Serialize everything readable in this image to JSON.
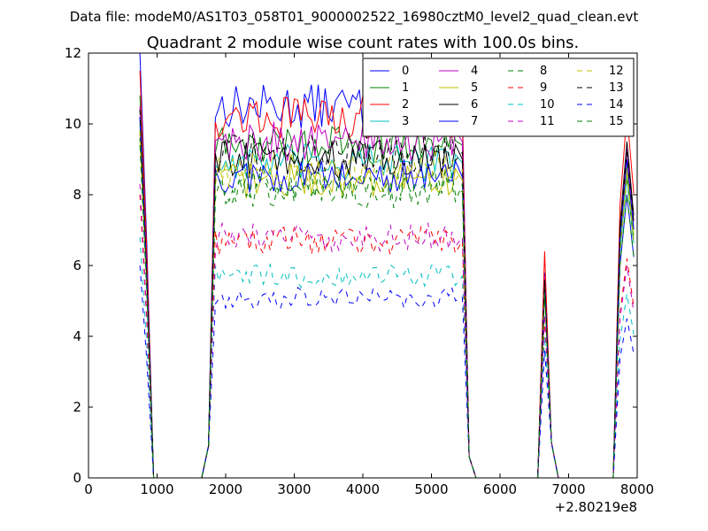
{
  "figure": {
    "suptitle": "Data file: modeM0/AS1T03_058T01_9000002522_16980cztM0_level2_quad_clean.evt"
  },
  "chart_data": {
    "type": "line",
    "title": "Quadrant 2 module wise count rates with 100.0s bins.",
    "xlabel": "",
    "ylabel": "",
    "x_offset_label": "+2.80219e8",
    "xlim": [
      0,
      8000
    ],
    "ylim": [
      0,
      12
    ],
    "xticks": [
      0,
      1000,
      2000,
      3000,
      4000,
      5000,
      6000,
      7000,
      8000
    ],
    "yticks": [
      0,
      2,
      4,
      6,
      8,
      10,
      12
    ],
    "grid": false,
    "legend_position": "top-right",
    "legend_columns": 4,
    "segments": [
      {
        "x0": 750,
        "x1": 1050,
        "profile": "spike_left"
      },
      {
        "x0": 1050,
        "x1": 1750,
        "profile": "zero"
      },
      {
        "x0": 1750,
        "x1": 5450,
        "profile": "plateau"
      },
      {
        "x0": 5450,
        "x1": 5650,
        "profile": "drop"
      },
      {
        "x0": 5650,
        "x1": 6550,
        "profile": "zero"
      },
      {
        "x0": 6550,
        "x1": 6850,
        "profile": "spike_mid"
      },
      {
        "x0": 6850,
        "x1": 7650,
        "profile": "zero"
      },
      {
        "x0": 7650,
        "x1": 8000,
        "profile": "spike_right"
      }
    ],
    "series": [
      {
        "name": "0",
        "color": "#0000ff",
        "dash": "solid",
        "level": 10.5,
        "start": 12.0,
        "spike_mid": 5.8,
        "spike_right": 8.0
      },
      {
        "name": "1",
        "color": "#008000",
        "dash": "solid",
        "level": 9.4,
        "start": 10.8,
        "spike_mid": 5.6,
        "spike_right": 9.0
      },
      {
        "name": "2",
        "color": "#ff0000",
        "dash": "solid",
        "level": 10.2,
        "start": 11.5,
        "spike_mid": 6.4,
        "spike_right": 10.3
      },
      {
        "name": "3",
        "color": "#00bfbf",
        "dash": "solid",
        "level": 8.9,
        "start": 10.0,
        "spike_mid": 5.5,
        "spike_right": 8.5
      },
      {
        "name": "4",
        "color": "#bf00bf",
        "dash": "solid",
        "level": 9.5,
        "start": 10.5,
        "spike_mid": 5.7,
        "spike_right": 9.3
      },
      {
        "name": "5",
        "color": "#bfbf00",
        "dash": "solid",
        "level": 8.4,
        "start": 9.8,
        "spike_mid": 5.3,
        "spike_right": 8.8
      },
      {
        "name": "6",
        "color": "#000000",
        "dash": "solid",
        "level": 9.0,
        "start": 10.2,
        "spike_mid": 5.6,
        "spike_right": 9.5
      },
      {
        "name": "7",
        "color": "#0000ff",
        "dash": "solid",
        "level": 8.5,
        "start": 10.2,
        "spike_mid": 5.4,
        "spike_right": 9.0
      },
      {
        "name": "8",
        "color": "#008000",
        "dash": "dashed",
        "level": 8.3,
        "start": 9.6,
        "spike_mid": 5.3,
        "spike_right": 8.5
      },
      {
        "name": "9",
        "color": "#ff0000",
        "dash": "dashed",
        "level": 6.7,
        "start": 8.0,
        "spike_mid": 4.5,
        "spike_right": 6.2
      },
      {
        "name": "10",
        "color": "#00bfbf",
        "dash": "dashed",
        "level": 5.7,
        "start": 6.8,
        "spike_mid": 4.0,
        "spike_right": 5.2
      },
      {
        "name": "11",
        "color": "#bf00bf",
        "dash": "dashed",
        "level": 6.8,
        "start": 8.3,
        "spike_mid": 4.6,
        "spike_right": 6.0
      },
      {
        "name": "12",
        "color": "#bfbf00",
        "dash": "dashed",
        "level": 8.7,
        "start": 9.8,
        "spike_mid": 5.4,
        "spike_right": 8.6
      },
      {
        "name": "13",
        "color": "#000000",
        "dash": "dashed",
        "level": 9.2,
        "start": 10.4,
        "spike_mid": 5.6,
        "spike_right": 9.2
      },
      {
        "name": "14",
        "color": "#0000ff",
        "dash": "dashed",
        "level": 5.1,
        "start": 6.0,
        "spike_mid": 3.6,
        "spike_right": 4.5
      },
      {
        "name": "15",
        "color": "#008000",
        "dash": "dashed",
        "level": 8.1,
        "start": 9.4,
        "spike_mid": 5.2,
        "spike_right": 8.0
      }
    ]
  }
}
